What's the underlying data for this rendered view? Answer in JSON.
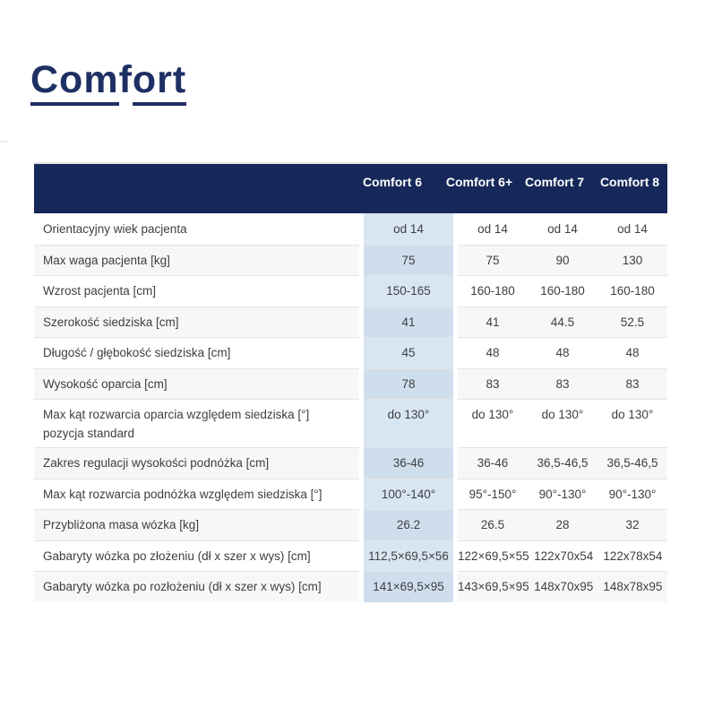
{
  "logo": {
    "part1": "Com",
    "part2": "f",
    "part3": "ort",
    "color": "#1e2f63"
  },
  "table": {
    "header": {
      "background": "#16285a",
      "columns": [
        "Comfort 6",
        "Comfort 6+",
        "Comfort 7",
        "Comfort 8"
      ]
    },
    "highlight_column": "Comfort 6",
    "highlight_color": "#d8e5f3",
    "rows": [
      {
        "label": "Orientacyjny wiek pacjenta",
        "sublabel": "",
        "values": [
          "od 14",
          "od 14",
          "od 14",
          "od 14"
        ]
      },
      {
        "label": "Max waga pacjenta [kg]",
        "sublabel": "",
        "values": [
          "75",
          "75",
          "90",
          "130"
        ]
      },
      {
        "label": "Wzrost pacjenta [cm]",
        "sublabel": "",
        "values": [
          "150-165",
          "160-180",
          "160-180",
          "160-180"
        ]
      },
      {
        "label": "Szerokość siedziska [cm]",
        "sublabel": "",
        "values": [
          "41",
          "41",
          "44.5",
          "52.5"
        ]
      },
      {
        "label": "Długość / głębokość siedziska [cm]",
        "sublabel": "",
        "values": [
          "45",
          "48",
          "48",
          "48"
        ]
      },
      {
        "label": "Wysokość oparcia [cm]",
        "sublabel": "",
        "values": [
          "78",
          "83",
          "83",
          "83"
        ]
      },
      {
        "label": "Max kąt rozwarcia oparcia względem siedziska [°]",
        "sublabel": "pozycja standard",
        "values": [
          "do 130°",
          "do 130°",
          "do 130°",
          "do 130°"
        ]
      },
      {
        "label": "Zakres regulacji wysokości podnóżka [cm]",
        "sublabel": "",
        "values": [
          "36-46",
          "36-46",
          "36,5-46,5",
          "36,5-46,5"
        ]
      },
      {
        "label": "Max kąt rozwarcia podnóżka względem siedziska [°]",
        "sublabel": "",
        "values": [
          "100°-140°",
          "95°-150°",
          "90°-130°",
          "90°-130°"
        ]
      },
      {
        "label": "Przybliżona masa wózka [kg]",
        "sublabel": "",
        "values": [
          "26.2",
          "26.5",
          "28",
          "32"
        ]
      },
      {
        "label": "Gabaryty wózka po złożeniu (dł x szer x wys) [cm]",
        "sublabel": "",
        "values": [
          "112,5×69,5×56",
          "122×69,5×55",
          "122x70x54",
          "122x78x54"
        ]
      },
      {
        "label": "Gabaryty wózka po rozłożeniu (dł x szer x wys) [cm]",
        "sublabel": "",
        "values": [
          "141×69,5×95",
          "143×69,5×95",
          "148x70x95",
          "148x78x95"
        ]
      }
    ]
  }
}
